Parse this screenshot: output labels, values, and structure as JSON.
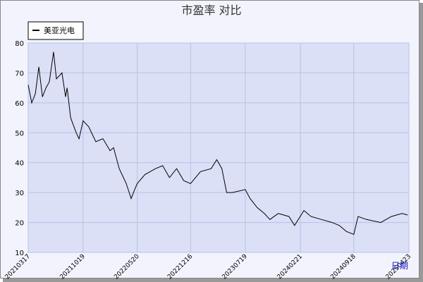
{
  "chart_data": {
    "type": "line",
    "title": "市盈率  对比",
    "x_label": "日期",
    "x": [
      "20210317",
      "20210331",
      "20210414",
      "20210428",
      "20210512",
      "20210526",
      "20210608",
      "20210625",
      "20210706",
      "20210728",
      "20210811",
      "20210817",
      "20210831",
      "20210922",
      "20211003",
      "20211019",
      "20211110",
      "20211208",
      "20220105",
      "20220202",
      "20220216",
      "20220310",
      "20220407",
      "20220426",
      "20220510",
      "20220520",
      "20220619",
      "20220731",
      "20220828",
      "20220924",
      "20221022",
      "20221119",
      "20221216",
      "20230124",
      "20230307",
      "20230329",
      "20230418",
      "20230507",
      "20230529",
      "20230719",
      "20230807",
      "20230904",
      "20231002",
      "20231024",
      "20231126",
      "20240107",
      "20240129",
      "20240306",
      "20240403",
      "20240514",
      "20240625",
      "20240723",
      "20240820",
      "20240918",
      "20241005",
      "20241107",
      "20250102",
      "20250213",
      "20250327",
      "20250418"
    ],
    "series": [
      {
        "name": "美亚光电",
        "color": "#000000",
        "values": [
          66,
          60,
          63,
          72,
          62,
          65,
          67,
          77,
          68,
          70,
          62,
          65,
          55,
          50,
          48,
          54,
          52,
          47,
          48,
          44,
          45,
          38,
          33,
          28,
          31,
          33,
          36,
          38,
          39,
          35,
          38,
          34,
          33,
          37,
          38,
          41,
          38,
          30,
          30,
          31,
          28,
          25,
          23,
          21,
          23,
          22,
          19,
          24,
          22,
          21,
          20,
          19,
          17,
          16,
          22,
          21,
          20,
          22,
          23,
          22.5
        ]
      }
    ],
    "xlim": [
      "20210317",
      "20250423"
    ],
    "xticks": [
      "20210317",
      "20211019",
      "20220520",
      "20221216",
      "20230719",
      "20240221",
      "20240918",
      "20250423"
    ],
    "ylim": [
      10,
      80
    ],
    "yticks": [
      10,
      20,
      30,
      40,
      50,
      60,
      70,
      80
    ],
    "grid": true,
    "legend": "top-left"
  }
}
